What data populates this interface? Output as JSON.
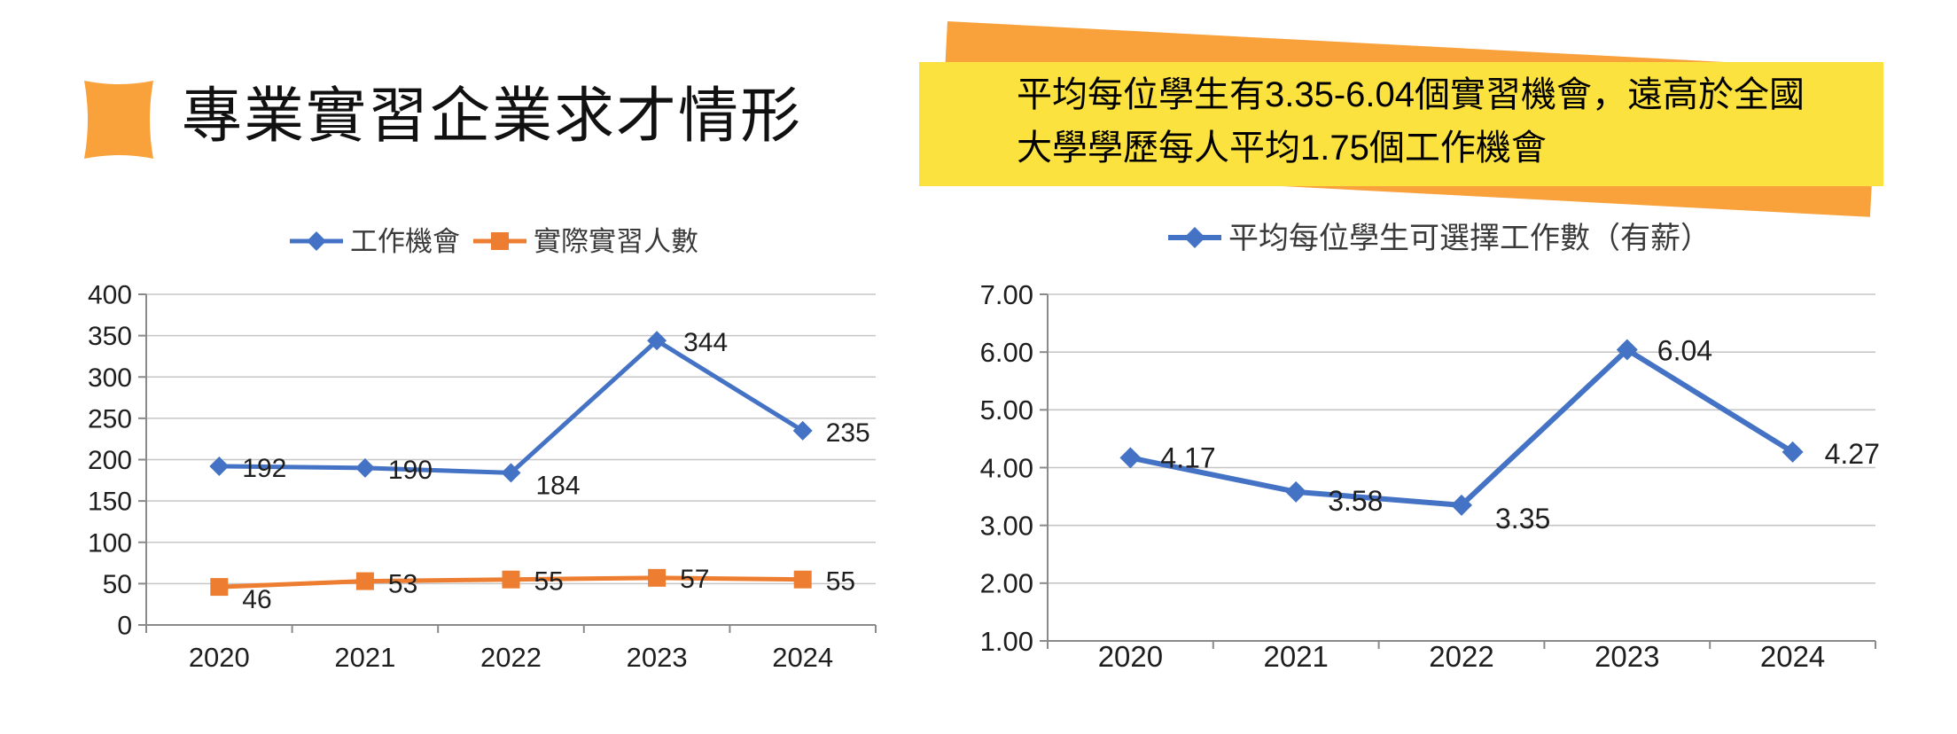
{
  "header": {
    "title": "專業實習企業求才情形"
  },
  "callout": {
    "line1": "平均每位學生有3.35-6.04個實習機會，遠高於全國",
    "line2": "大學學歷每人平均1.75個工作機會"
  },
  "colors": {
    "accent_orange": "#F9A13B",
    "highlight_yellow": "#FCE23E",
    "series_blue": "#4472C4",
    "series_orange": "#ED7D31",
    "gridline": "#C6C6C6",
    "axis": "#8A8A8A",
    "tick_text": "#1E1E1E",
    "legend_text": "#3A3A3A"
  },
  "chart_data": [
    {
      "type": "line",
      "title": "",
      "categories": [
        "2020",
        "2021",
        "2022",
        "2023",
        "2024"
      ],
      "series": [
        {
          "name": "工作機會",
          "color": "#4472C4",
          "marker": "diamond",
          "values": [
            192,
            190,
            184,
            344,
            235
          ],
          "labels": [
            "192",
            "190",
            "184",
            "344",
            "235"
          ]
        },
        {
          "name": "實際實習人數",
          "color": "#ED7D31",
          "marker": "square",
          "values": [
            46,
            53,
            55,
            57,
            55
          ],
          "labels": [
            "46",
            "53",
            "55",
            "57",
            "55"
          ]
        }
      ],
      "xlabel": "",
      "ylabel": "",
      "ylim": [
        0,
        400
      ],
      "ytick_step": 50,
      "ytick_labels": [
        "0",
        "50",
        "100",
        "150",
        "200",
        "250",
        "300",
        "350",
        "400"
      ],
      "grid": true,
      "legend_position": "top"
    },
    {
      "type": "line",
      "title": "",
      "categories": [
        "2020",
        "2021",
        "2022",
        "2023",
        "2024"
      ],
      "series": [
        {
          "name": "平均每位學生可選擇工作數（有薪）",
          "color": "#4472C4",
          "marker": "diamond",
          "values": [
            4.17,
            3.58,
            3.35,
            6.04,
            4.27
          ],
          "labels": [
            "4.17",
            "3.58",
            "3.35",
            "6.04",
            "4.27"
          ]
        }
      ],
      "xlabel": "",
      "ylabel": "",
      "ylim": [
        1,
        7
      ],
      "ytick_step": 1,
      "ytick_labels": [
        "1.00",
        "2.00",
        "3.00",
        "4.00",
        "5.00",
        "6.00",
        "7.00"
      ],
      "grid": true,
      "legend_position": "top"
    }
  ]
}
